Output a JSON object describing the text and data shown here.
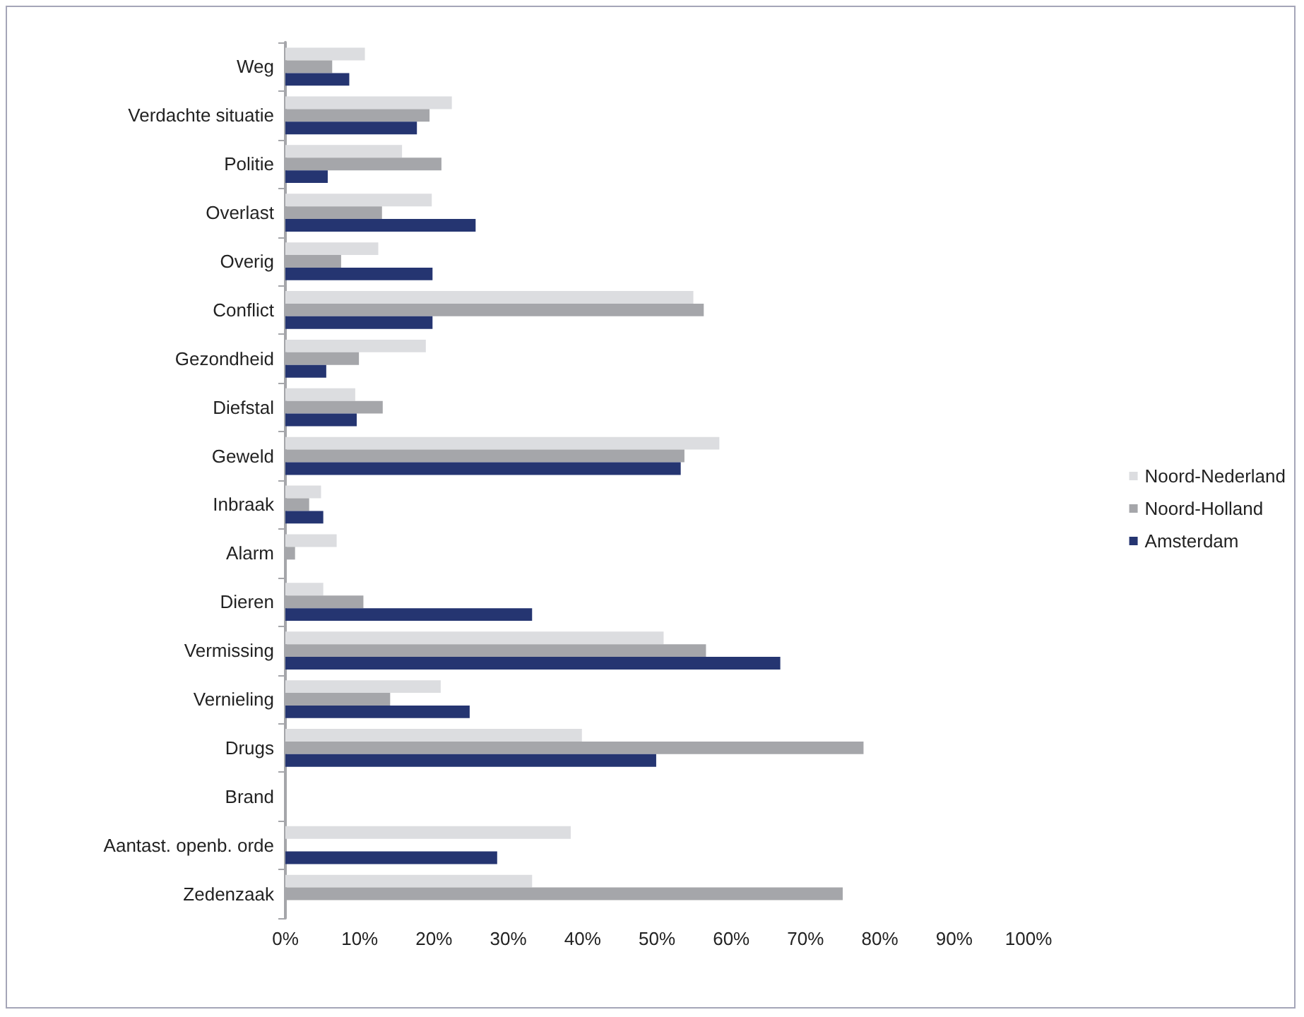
{
  "chart_data": {
    "type": "bar",
    "orientation": "horizontal",
    "categories": [
      "Weg",
      "Verdachte situatie",
      "Politie",
      "Overlast",
      "Overig",
      "Conflict",
      "Gezondheid",
      "Diefstal",
      "Geweld",
      "Inbraak",
      "Alarm",
      "Dieren",
      "Vermissing",
      "Vernieling",
      "Drugs",
      "Brand",
      "Aantast. openb. orde",
      "Zedenzaak"
    ],
    "series": [
      {
        "name": "Noord-Nederland",
        "color": "#dcdde0",
        "values": [
          10.7,
          22.4,
          15.7,
          19.7,
          12.5,
          54.9,
          18.9,
          9.4,
          58.4,
          4.8,
          6.9,
          5.1,
          50.9,
          20.9,
          39.9,
          null,
          38.4,
          33.2
        ]
      },
      {
        "name": "Noord-Holland",
        "color": "#a5a6aa",
        "values": [
          6.3,
          19.4,
          21.0,
          13.0,
          7.5,
          56.3,
          9.9,
          13.1,
          53.7,
          3.2,
          1.3,
          10.5,
          56.6,
          14.1,
          77.8,
          null,
          null,
          75.0
        ]
      },
      {
        "name": "Amsterdam",
        "color": "#253571",
        "values": [
          8.6,
          17.7,
          5.7,
          25.6,
          19.8,
          19.8,
          5.5,
          9.6,
          53.2,
          5.1,
          null,
          33.2,
          66.6,
          24.8,
          49.9,
          null,
          28.5,
          null
        ]
      }
    ],
    "xlim": [
      0,
      100
    ],
    "xticks": [
      {
        "value": 0,
        "label": "0%"
      },
      {
        "value": 10,
        "label": "10%"
      },
      {
        "value": 20,
        "label": "20%"
      },
      {
        "value": 30,
        "label": "30%"
      },
      {
        "value": 40,
        "label": "40%"
      },
      {
        "value": 50,
        "label": "50%"
      },
      {
        "value": 60,
        "label": "60%"
      },
      {
        "value": 70,
        "label": "70%"
      },
      {
        "value": 80,
        "label": "80%"
      },
      {
        "value": 90,
        "label": "90%"
      },
      {
        "value": 100,
        "label": "100%"
      }
    ],
    "grid": false,
    "legend": "right"
  }
}
